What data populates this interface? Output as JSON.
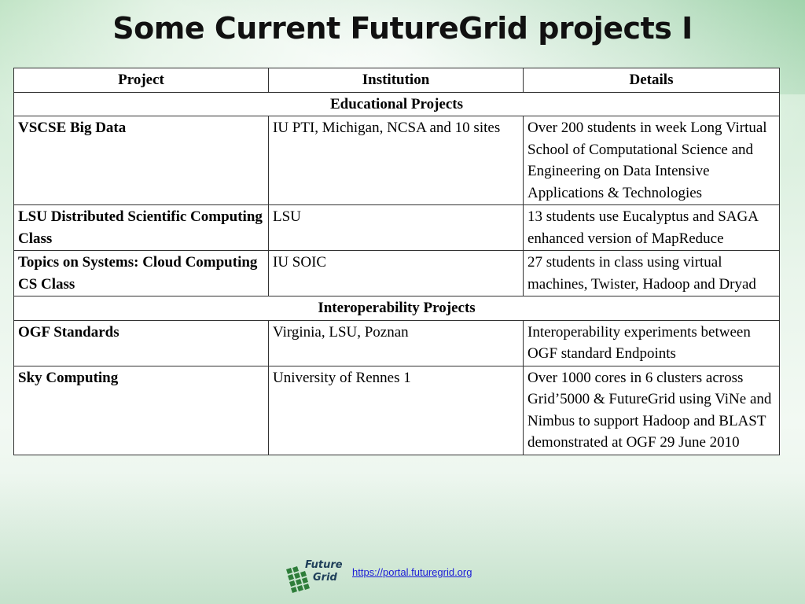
{
  "slide": {
    "title": "Some Current FutureGrid projects I"
  },
  "table": {
    "headers": [
      "Project",
      "Institution",
      "Details"
    ],
    "sections": [
      {
        "label": "Educational Projects",
        "rows": [
          {
            "project": "VSCSE Big Data",
            "institution": "IU PTI, Michigan, NCSA and 10 sites",
            "details": "Over 200 students in week Long Virtual School of Computational Science and Engineering on Data Intensive Applications & Technologies"
          },
          {
            "project": "LSU Distributed Scientific Computing Class",
            "institution": "LSU",
            "details": "13 students use Eucalyptus and SAGA enhanced version of MapReduce"
          },
          {
            "project": "Topics on Systems: Cloud Computing CS Class",
            "institution": "IU SOIC",
            "details": "27 students in class using virtual machines, Twister, Hadoop and Dryad"
          }
        ]
      },
      {
        "label": "Interoperability Projects",
        "rows": [
          {
            "project": "OGF Standards",
            "institution": "Virginia, LSU, Poznan",
            "details": "Interoperability experiments between OGF standard Endpoints"
          },
          {
            "project": "Sky Computing",
            "institution": "University of Rennes 1",
            "details": "Over 1000 cores in 6 clusters across Grid’5000 & FutureGrid using ViNe and Nimbus to support Hadoop and BLAST demonstrated at OGF 29 June 2010"
          }
        ]
      }
    ]
  },
  "footer": {
    "logo_line1": "Future",
    "logo_line2": "Grid",
    "logo_icon": "futuregrid-logo-icon",
    "link_text": "https://portal.futuregrid.org"
  },
  "colors": {
    "link": "#1b1bd6",
    "logo_green": "#2e7d3a",
    "logo_dark": "#1f3f5a"
  }
}
